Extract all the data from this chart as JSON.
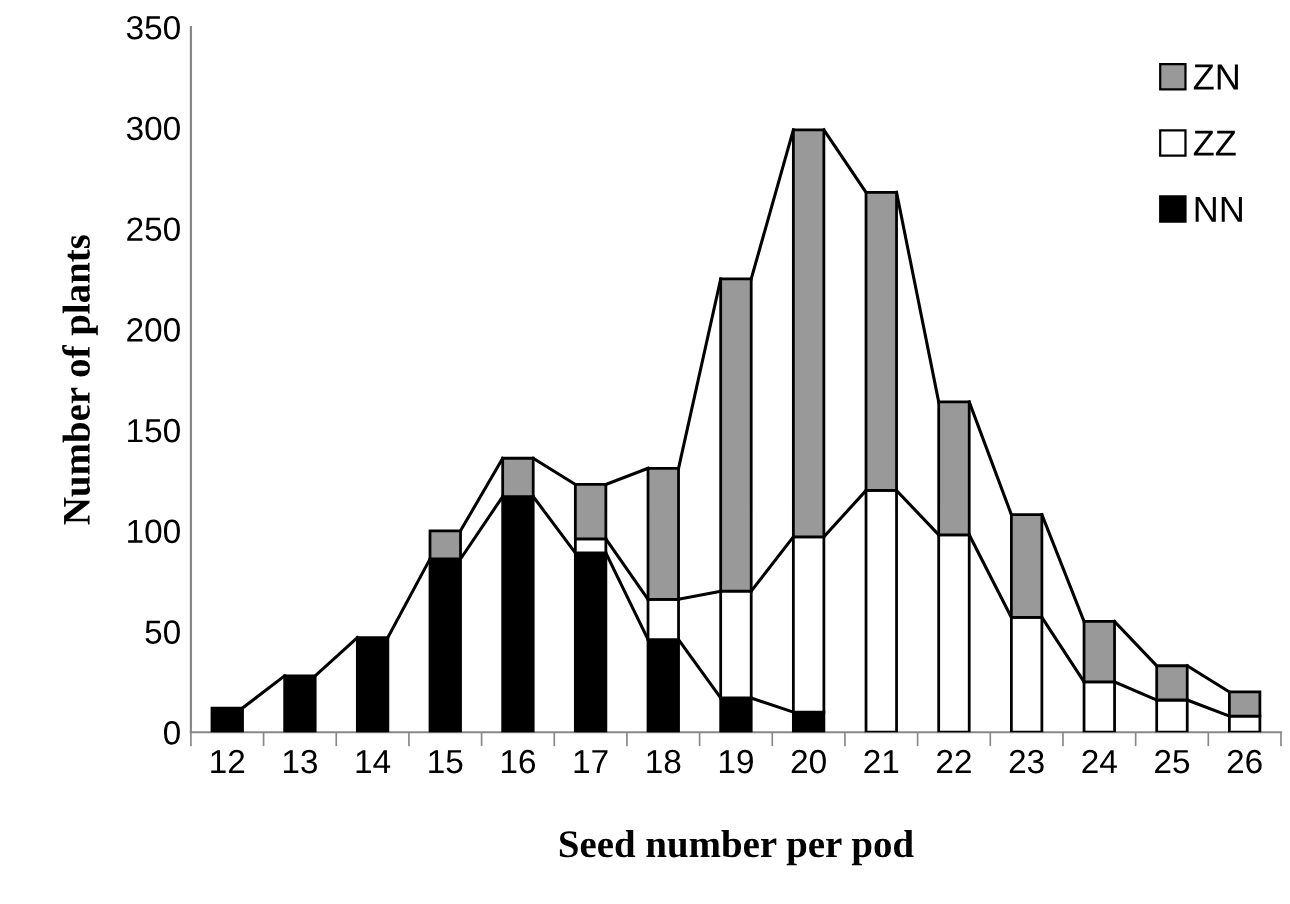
{
  "chart_data": {
    "type": "bar",
    "stacked": true,
    "xlabel": "Seed number per pod",
    "ylabel": "Number of plants",
    "categories": [
      "12",
      "13",
      "14",
      "15",
      "16",
      "17",
      "18",
      "19",
      "20",
      "21",
      "22",
      "23",
      "24",
      "25",
      "26"
    ],
    "series": [
      {
        "name": "NN",
        "color": "#000000",
        "values": [
          12,
          28,
          47,
          86,
          117,
          89,
          46,
          17,
          10,
          null,
          null,
          null,
          null,
          null,
          null
        ]
      },
      {
        "name": "ZZ",
        "color": "#ffffff",
        "values": [
          null,
          null,
          null,
          null,
          null,
          7,
          20,
          53,
          87,
          120,
          98,
          57,
          25,
          16,
          8
        ]
      },
      {
        "name": "ZN",
        "color": "#999999",
        "values": [
          null,
          null,
          null,
          14,
          19,
          27,
          65,
          155,
          202,
          148,
          66,
          51,
          30,
          17,
          12
        ]
      }
    ],
    "ylim": [
      0,
      350
    ],
    "yticks": [
      0,
      50,
      100,
      150,
      200,
      250,
      300,
      350
    ],
    "grid": false,
    "legend": "top right"
  }
}
